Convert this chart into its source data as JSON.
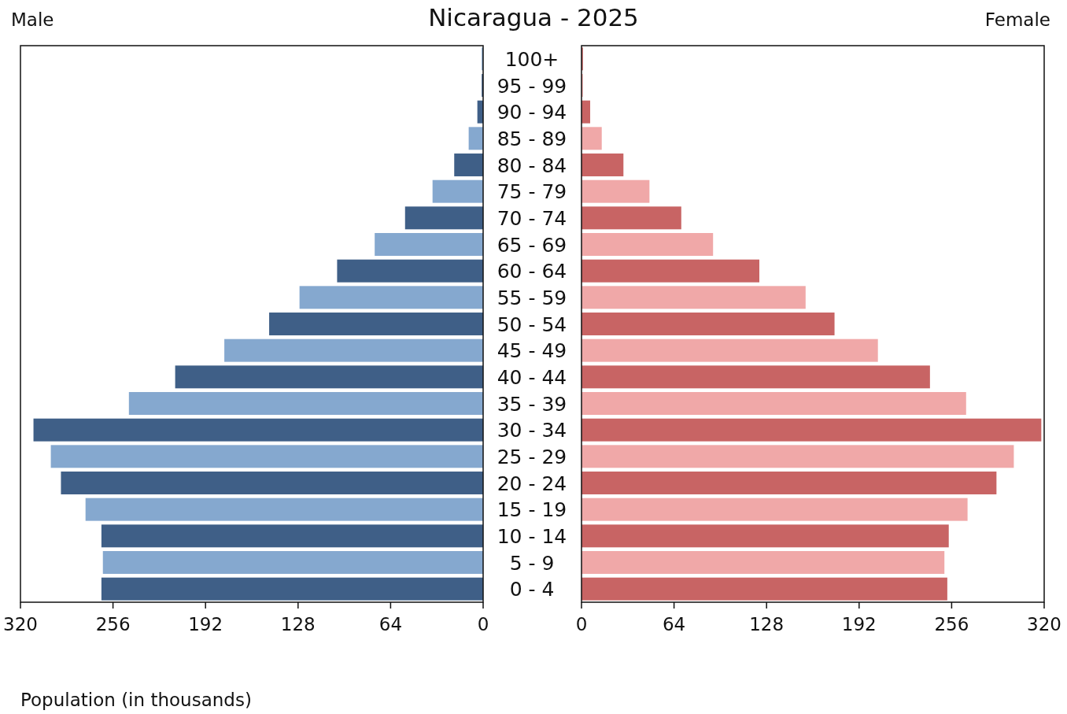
{
  "chart_data": [
    {
      "type": "bar",
      "orientation": "horizontal",
      "title": "Nicaragua - 2025",
      "subtitle": "Male",
      "xlabel": "Population (in thousands)",
      "categories": [
        "100+",
        "95 - 99",
        "90 - 94",
        "85 - 89",
        "80 - 84",
        "75 - 79",
        "70 - 74",
        "65 - 69",
        "60 - 64",
        "55 - 59",
        "50 - 54",
        "45 - 49",
        "40 - 44",
        "35 - 39",
        "30 - 34",
        "25 - 29",
        "20 - 24",
        "15 - 19",
        "10 - 14",
        "5 - 9",
        "0 - 4"
      ],
      "values": [
        1,
        1,
        4,
        10,
        20,
        35,
        54,
        75,
        101,
        127,
        148,
        179,
        213,
        245,
        311,
        299,
        292,
        275,
        264,
        263,
        264
      ],
      "colors": [
        "#85a8cf",
        "#3f5f87",
        "#3f5f87",
        "#85a8cf",
        "#3f5f87",
        "#85a8cf",
        "#3f5f87",
        "#85a8cf",
        "#3f5f87",
        "#85a8cf",
        "#3f5f87",
        "#85a8cf",
        "#3f5f87",
        "#85a8cf",
        "#3f5f87",
        "#85a8cf",
        "#3f5f87",
        "#85a8cf",
        "#3f5f87",
        "#85a8cf",
        "#3f5f87"
      ],
      "xlim": [
        320,
        0
      ],
      "xticks": [
        320,
        256,
        192,
        128,
        64,
        0
      ],
      "grid": false
    },
    {
      "type": "bar",
      "orientation": "horizontal",
      "subtitle": "Female",
      "tick_labels": "x",
      "values": [
        1,
        1,
        6,
        14,
        29,
        47,
        69,
        91,
        123,
        155,
        175,
        205,
        241,
        266,
        318,
        299,
        287,
        267,
        254,
        251,
        253
      ],
      "colors": [
        "#c86464",
        "#f0a8a8",
        "#c86464",
        "#f0a8a8",
        "#c86464",
        "#f0a8a8",
        "#c86464",
        "#f0a8a8",
        "#c86464",
        "#f0a8a8",
        "#c86464",
        "#f0a8a8",
        "#c86464",
        "#f0a8a8",
        "#c86464",
        "#f0a8a8",
        "#c86464",
        "#f0a8a8",
        "#c86464",
        "#f0a8a8",
        "#c86464"
      ],
      "xlim": [
        0,
        320
      ],
      "xticks": [
        0,
        64,
        128,
        192,
        256,
        320
      ],
      "grid": false
    }
  ]
}
